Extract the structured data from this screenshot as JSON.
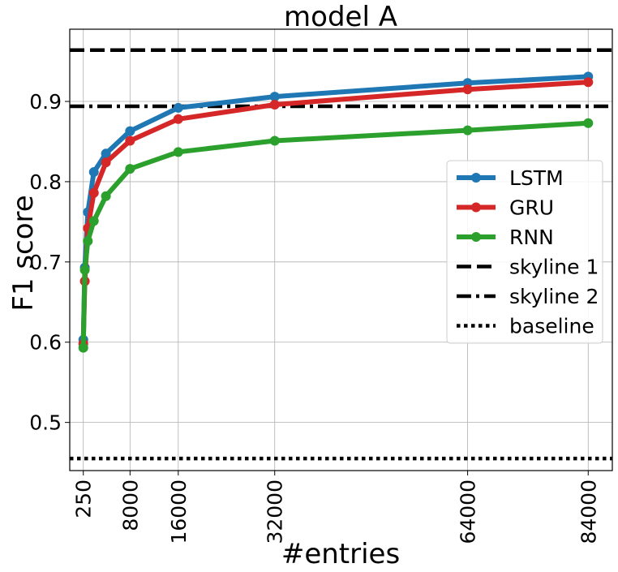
{
  "chart_data": {
    "type": "line",
    "title": "model A",
    "xlabel": "#entries",
    "ylabel": "F1 score",
    "xlim": [
      -2000,
      88000
    ],
    "ylim": [
      0.44,
      0.99
    ],
    "xticks": [
      250,
      8000,
      16000,
      32000,
      64000,
      84000
    ],
    "xtick_labels": [
      "250",
      "8000",
      "16000",
      "32000",
      "64000",
      "84000"
    ],
    "yticks": [
      0.5,
      0.6,
      0.7,
      0.8,
      0.9
    ],
    "ytick_labels": [
      "0.5",
      "0.6",
      "0.7",
      "0.8",
      "0.9"
    ],
    "grid": true,
    "legend_position": "center-right",
    "x": [
      250,
      500,
      1000,
      2000,
      4000,
      8000,
      16000,
      32000,
      64000,
      84000
    ],
    "series": [
      {
        "name": "LSTM",
        "color": "#1f77b4",
        "values": [
          0.603,
          0.693,
          0.762,
          0.812,
          0.835,
          0.863,
          0.892,
          0.906,
          0.923,
          0.931
        ]
      },
      {
        "name": "GRU",
        "color": "#d62728",
        "values": [
          0.598,
          0.676,
          0.742,
          0.786,
          0.824,
          0.851,
          0.878,
          0.896,
          0.915,
          0.924
        ]
      },
      {
        "name": "RNN",
        "color": "#2ca02c",
        "values": [
          0.593,
          0.69,
          0.726,
          0.751,
          0.782,
          0.816,
          0.837,
          0.851,
          0.864,
          0.873
        ]
      }
    ],
    "reference_lines": [
      {
        "name": "skyline 1",
        "value": 0.964,
        "style": "dashed"
      },
      {
        "name": "skyline 2",
        "value": 0.894,
        "style": "dashdot"
      },
      {
        "name": "baseline",
        "value": 0.455,
        "style": "dotted"
      }
    ]
  }
}
